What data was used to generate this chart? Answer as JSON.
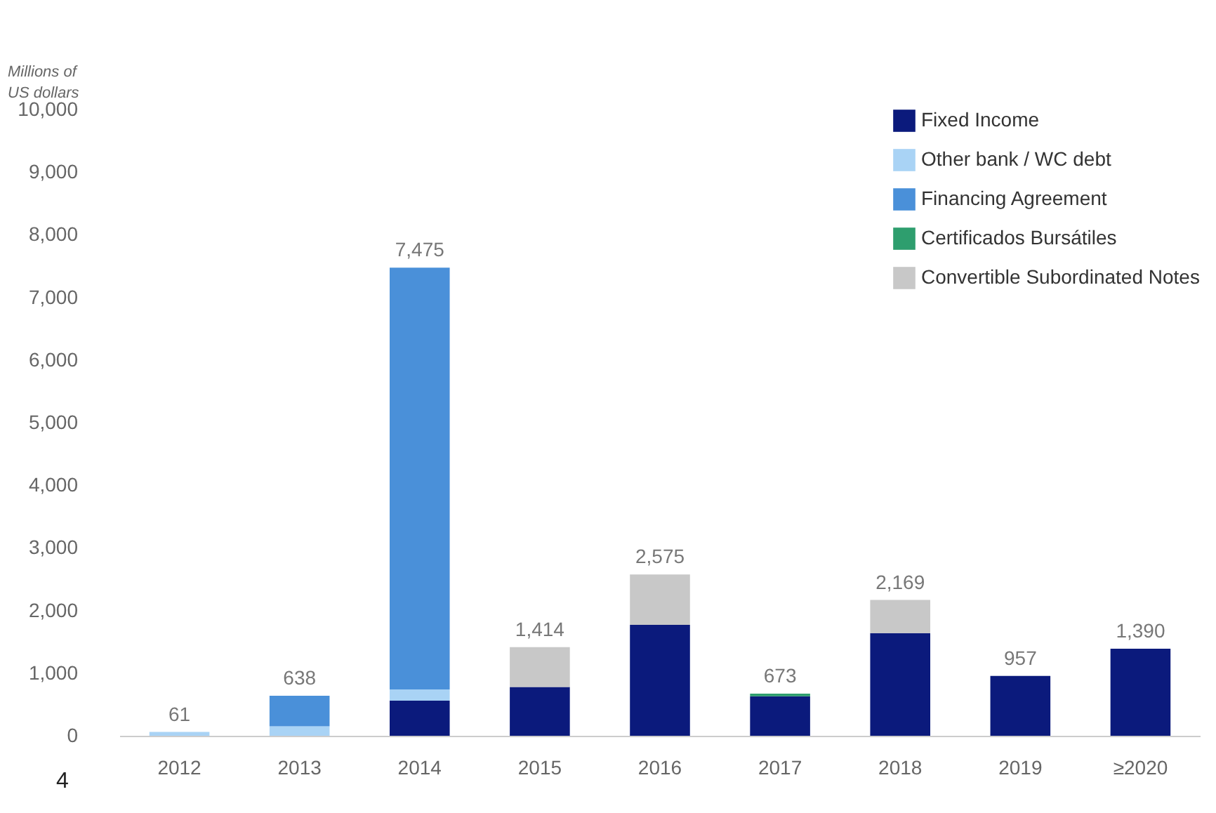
{
  "chart_data": {
    "type": "bar",
    "stacked": true,
    "ylabel": "Millions of US dollars",
    "categories": [
      "2012",
      "2013",
      "2014",
      "2015",
      "2016",
      "2017",
      "2018",
      "2019",
      "≥2020"
    ],
    "series": [
      {
        "name": "Fixed Income",
        "color": "#0b1a7c",
        "values": [
          null,
          null,
          560,
          780,
          1770,
          630,
          1640,
          957,
          1390
        ]
      },
      {
        "name": "Other bank / WC debt",
        "color": "#a9d3f5",
        "values": [
          61,
          150,
          180,
          null,
          null,
          null,
          null,
          null,
          null
        ]
      },
      {
        "name": "Financing Agreement",
        "color": "#4a90d9",
        "values": [
          null,
          488,
          6735,
          null,
          null,
          null,
          null,
          null,
          null
        ]
      },
      {
        "name": "Certificados Bursátiles",
        "color": "#2e9e6e",
        "values": [
          null,
          null,
          null,
          null,
          null,
          43,
          null,
          null,
          null
        ]
      },
      {
        "name": "Convertible Subordinated Notes",
        "color": "#c8c8c8",
        "values": [
          null,
          null,
          null,
          634,
          805,
          null,
          529,
          null,
          null
        ]
      }
    ],
    "totals": [
      "61",
      "638",
      "7,475",
      "1,414",
      "2,575",
      "673",
      "2,169",
      "957",
      "1,390"
    ],
    "ylim": [
      0,
      10000
    ],
    "yticks": [
      0,
      {
        "value": 1000,
        "label": "1,000"
      },
      {
        "value": 2000,
        "label": "2,000"
      },
      {
        "value": 3000,
        "label": "3,000"
      },
      {
        "value": 4000,
        "label": "4,000"
      },
      {
        "value": 5000,
        "label": "5,000"
      },
      {
        "value": 6000,
        "label": "6,000"
      },
      {
        "value": 7000,
        "label": "7,000"
      },
      {
        "value": 8000,
        "label": "8,000"
      },
      {
        "value": 9000,
        "label": "9,000"
      },
      {
        "value": 10000,
        "label": "10,000"
      }
    ],
    "grid": false,
    "legend": "top right",
    "annotations": [
      "4"
    ]
  }
}
